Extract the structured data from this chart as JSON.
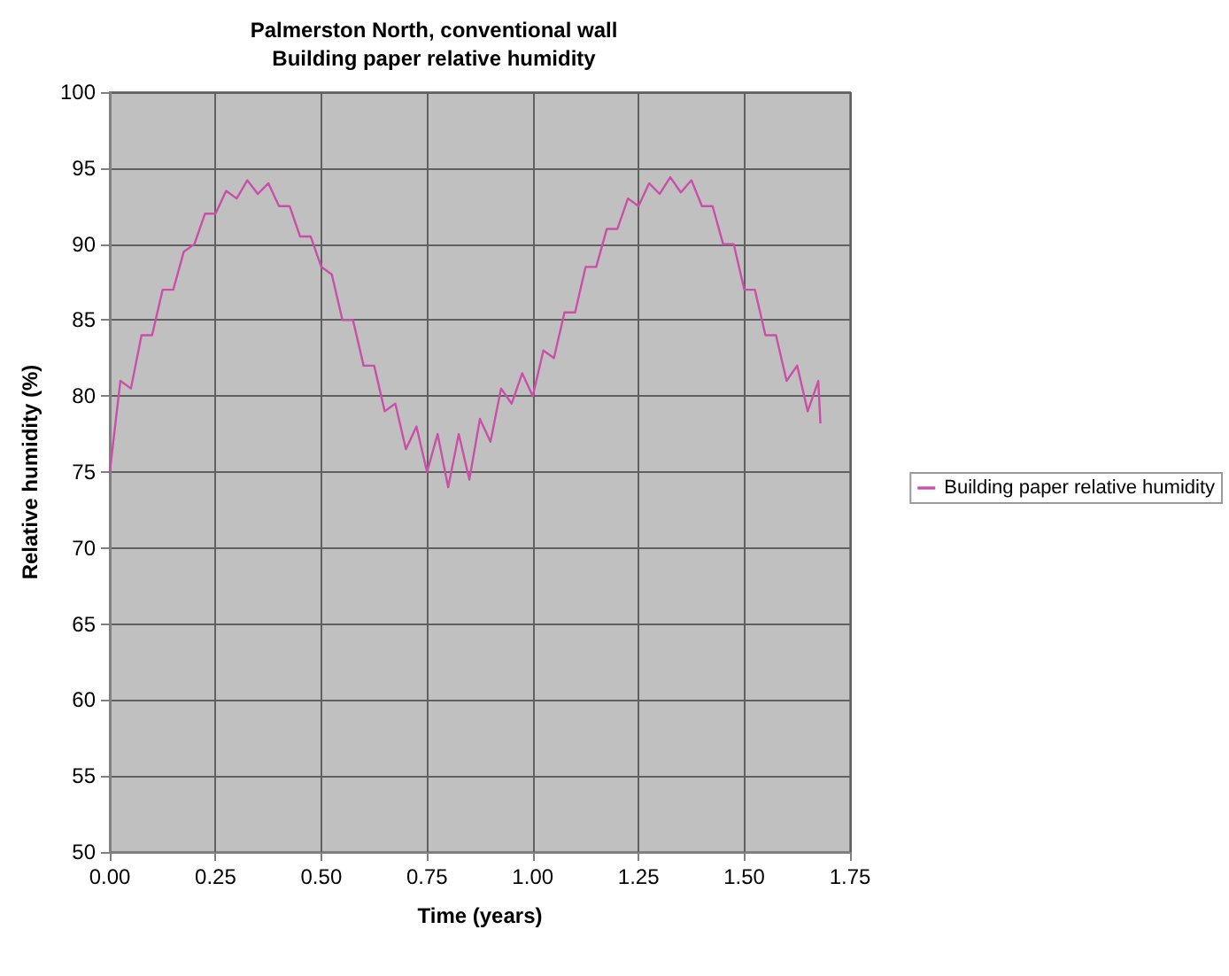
{
  "chart_data": {
    "type": "line",
    "title": "Palmerston North, conventional wall",
    "subtitle": "Building paper relative humidity",
    "xlabel": "Time (years)",
    "ylabel": "Relative humidity (%)",
    "x": [
      0,
      0.025,
      0.05,
      0.075,
      0.1,
      0.125,
      0.15,
      0.175,
      0.2,
      0.225,
      0.25,
      0.275,
      0.3,
      0.325,
      0.35,
      0.375,
      0.4,
      0.425,
      0.45,
      0.475,
      0.5,
      0.525,
      0.55,
      0.575,
      0.6,
      0.625,
      0.65,
      0.675,
      0.7,
      0.725,
      0.75,
      0.775,
      0.8,
      0.825,
      0.85,
      0.875,
      0.9,
      0.925,
      0.95,
      0.975,
      1.0,
      1.025,
      1.05,
      1.075,
      1.1,
      1.125,
      1.15,
      1.175,
      1.2,
      1.225,
      1.25,
      1.275,
      1.3,
      1.325,
      1.35,
      1.375,
      1.4,
      1.425,
      1.45,
      1.475,
      1.5,
      1.525,
      1.55,
      1.575,
      1.6,
      1.625,
      1.65,
      1.675,
      1.68
    ],
    "series": [
      {
        "name": "Building paper relative humidity",
        "color": "#c94fa8",
        "values": [
          75,
          81,
          80.5,
          84,
          84,
          87,
          87,
          89.5,
          90,
          92,
          92,
          93.5,
          93,
          94.2,
          93.3,
          94,
          92.5,
          92.5,
          90.5,
          90.5,
          88.5,
          88,
          85,
          85,
          82,
          82,
          79,
          79.5,
          76.5,
          78,
          75,
          77.5,
          74,
          77.5,
          74.5,
          78.5,
          77,
          80.5,
          79.5,
          81.5,
          80,
          83,
          82.5,
          85.5,
          85.5,
          88.5,
          88.5,
          91,
          91,
          93,
          92.5,
          94,
          93.3,
          94.4,
          93.4,
          94.2,
          92.5,
          92.5,
          90,
          90,
          87,
          87,
          84,
          84,
          81,
          82,
          79,
          81,
          78.2
        ]
      }
    ],
    "xlim": [
      0,
      1.75
    ],
    "xticks": [
      {
        "value": 0,
        "label": "0.00"
      },
      0.25,
      {
        "value": 0.5,
        "label": "0.50"
      },
      0.75,
      {
        "value": 1,
        "label": "1.00"
      },
      1.25,
      {
        "value": 1.5,
        "label": "1.50"
      },
      1.75
    ],
    "ylim": [
      50,
      100
    ],
    "yticks": [
      50,
      55,
      60,
      65,
      70,
      75,
      80,
      85,
      90,
      95,
      100
    ],
    "grid": true,
    "legend": "right",
    "marker": "none",
    "line_style": "solid"
  }
}
